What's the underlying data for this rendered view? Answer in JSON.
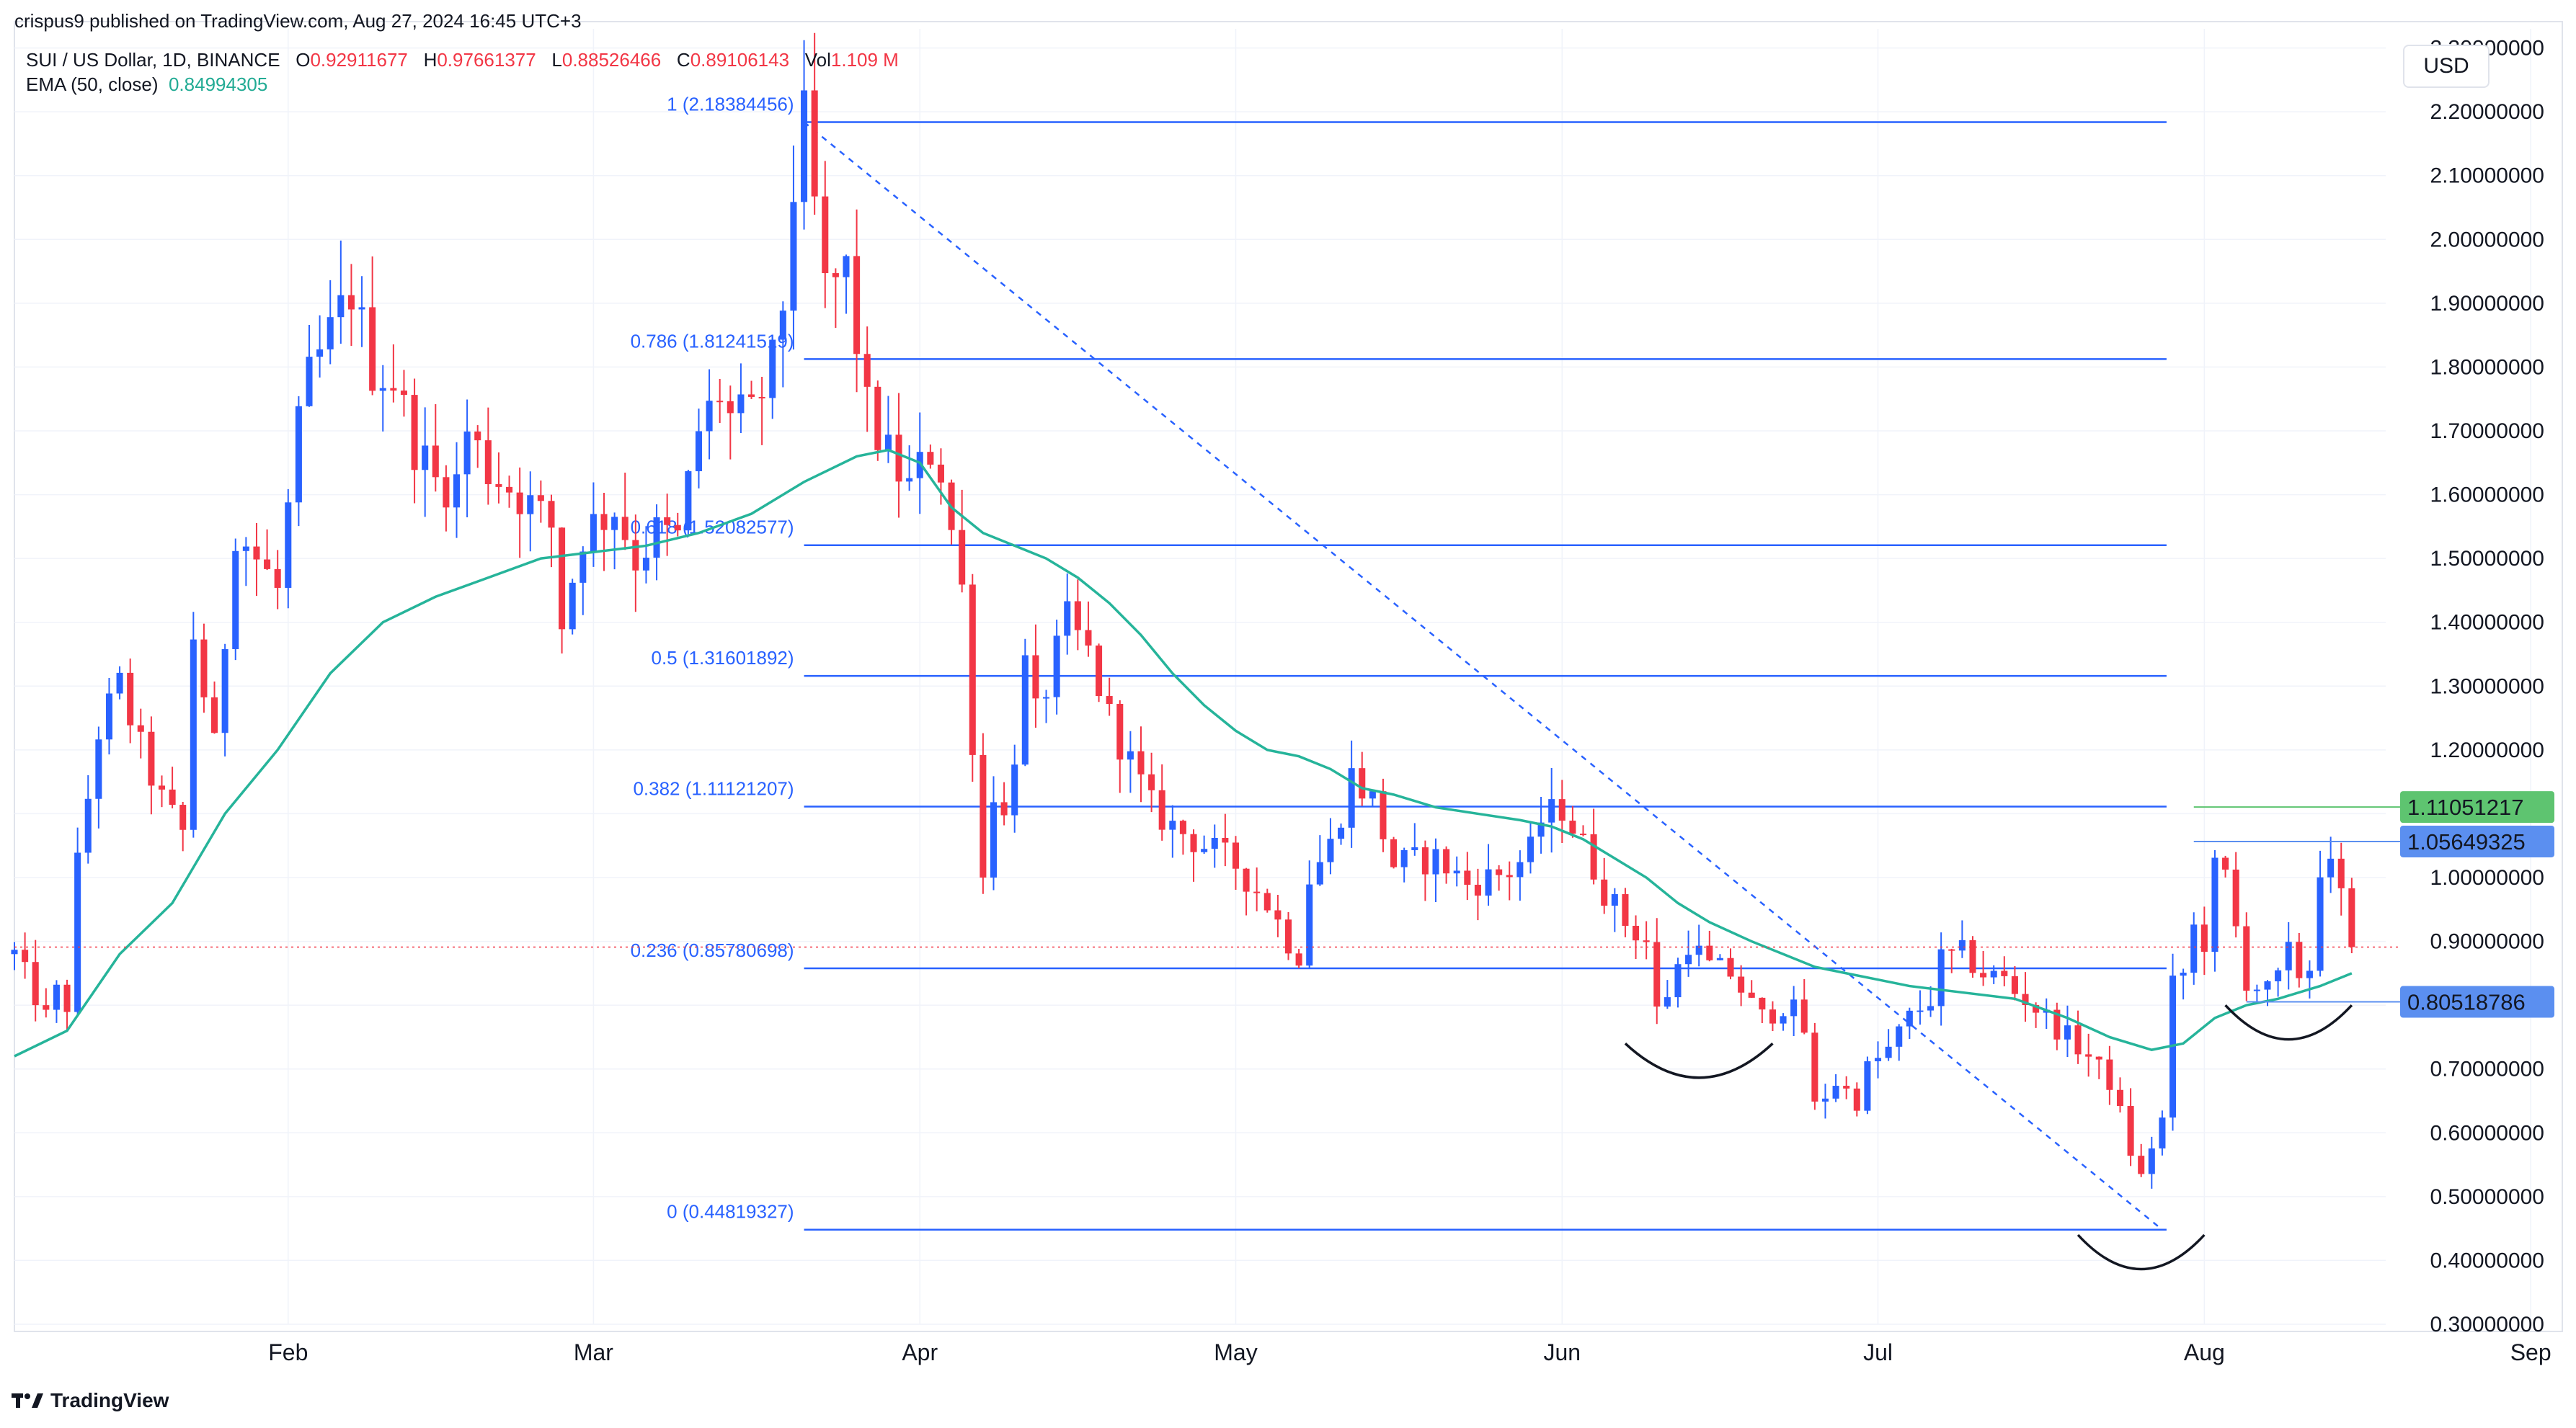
{
  "header": {
    "publisher": "crispus9 published on TradingView.com, Aug 27, 2024 16:45 UTC+3",
    "symbol": "SUI / US Dollar, 1D, BINANCE",
    "o_label": "O",
    "o_value": "0.92911677",
    "h_label": "H",
    "h_value": "0.97661377",
    "l_label": "L",
    "l_value": "0.88526466",
    "c_label": "C",
    "c_value": "0.89106143",
    "vol_label": "Vol",
    "vol_value": "1.109 M",
    "ema_label": "EMA (50, close)",
    "ema_value": "0.84994305"
  },
  "currency": "USD",
  "brand": "TradingView",
  "colors": {
    "up": "#2962ff",
    "down": "#f23645",
    "ema": "#26b49a",
    "fib": "#2962ff",
    "grid": "#f0f3fa",
    "green_tag": "#5ec470",
    "blue_tag": "#5b8ff0"
  },
  "chart_data": {
    "type": "candlestick",
    "title": "SUI / US Dollar, 1D, BINANCE",
    "ylim": [
      0.3,
      2.33
    ],
    "y_ticks": [
      "2.30000000",
      "2.20000000",
      "2.10000000",
      "2.00000000",
      "1.90000000",
      "1.80000000",
      "1.70000000",
      "1.60000000",
      "1.50000000",
      "1.40000000",
      "1.30000000",
      "1.20000000",
      "1.10000000",
      "1.00000000",
      "0.90000000",
      "0.80000000",
      "0.70000000",
      "0.60000000",
      "0.50000000",
      "0.40000000",
      "0.30000000"
    ],
    "x_labels": [
      {
        "label": "Feb",
        "day": 31
      },
      {
        "label": "Mar",
        "day": 60
      },
      {
        "label": "Apr",
        "day": 91
      },
      {
        "label": "May",
        "day": 121
      },
      {
        "label": "Jun",
        "day": 152
      },
      {
        "label": "Jul",
        "day": 182
      },
      {
        "label": "Aug",
        "day": 213
      },
      {
        "label": "Sep",
        "day": 244
      }
    ],
    "x_range_days": [
      5,
      247
    ],
    "price_path": [
      [
        5,
        0.88
      ],
      [
        8,
        0.78
      ],
      [
        9,
        0.82
      ],
      [
        10,
        0.8
      ],
      [
        11,
        1.02
      ],
      [
        13,
        1.23
      ],
      [
        15,
        1.3
      ],
      [
        17,
        1.2
      ],
      [
        19,
        1.12
      ],
      [
        21,
        1.07
      ],
      [
        22,
        1.38
      ],
      [
        24,
        1.2
      ],
      [
        26,
        1.55
      ],
      [
        28,
        1.5
      ],
      [
        30,
        1.45
      ],
      [
        32,
        1.7
      ],
      [
        33,
        1.78
      ],
      [
        35,
        1.85
      ],
      [
        37,
        1.92
      ],
      [
        39,
        1.8
      ],
      [
        41,
        1.78
      ],
      [
        43,
        1.68
      ],
      [
        45,
        1.62
      ],
      [
        47,
        1.62
      ],
      [
        48,
        1.7
      ],
      [
        50,
        1.64
      ],
      [
        53,
        1.6
      ],
      [
        56,
        1.55
      ],
      [
        57,
        1.4
      ],
      [
        59,
        1.54
      ],
      [
        62,
        1.58
      ],
      [
        64,
        1.5
      ],
      [
        66,
        1.54
      ],
      [
        68,
        1.53
      ],
      [
        70,
        1.7
      ],
      [
        72,
        1.76
      ],
      [
        73,
        1.72
      ],
      [
        75,
        1.72
      ],
      [
        77,
        1.8
      ],
      [
        78,
        1.9
      ],
      [
        79,
        2.08
      ],
      [
        80,
        2.18
      ],
      [
        81,
        2.05
      ],
      [
        82,
        1.92
      ],
      [
        84,
        1.95
      ],
      [
        86,
        1.73
      ],
      [
        88,
        1.66
      ],
      [
        90,
        1.61
      ],
      [
        92,
        1.67
      ],
      [
        93,
        1.64
      ],
      [
        95,
        1.45
      ],
      [
        96,
        1.22
      ],
      [
        97,
        1.0
      ],
      [
        98,
        1.14
      ],
      [
        99,
        1.09
      ],
      [
        100,
        1.2
      ],
      [
        101,
        1.33
      ],
      [
        102,
        1.25
      ],
      [
        104,
        1.35
      ],
      [
        105,
        1.4
      ],
      [
        107,
        1.35
      ],
      [
        109,
        1.25
      ],
      [
        111,
        1.18
      ],
      [
        113,
        1.11
      ],
      [
        115,
        1.08
      ],
      [
        118,
        1.05
      ],
      [
        121,
        1.02
      ],
      [
        124,
        0.96
      ],
      [
        126,
        0.9
      ],
      [
        127,
        0.88
      ],
      [
        128,
        1.0
      ],
      [
        130,
        1.05
      ],
      [
        132,
        1.16
      ],
      [
        134,
        1.12
      ],
      [
        136,
        1.02
      ],
      [
        140,
        1.03
      ],
      [
        143,
        0.99
      ],
      [
        147,
        1.01
      ],
      [
        149,
        1.04
      ],
      [
        150,
        1.09
      ],
      [
        152,
        1.11
      ],
      [
        154,
        1.05
      ],
      [
        156,
        0.98
      ],
      [
        158,
        0.93
      ],
      [
        160,
        0.9
      ],
      [
        161,
        0.79
      ],
      [
        162,
        0.82
      ],
      [
        164,
        0.9
      ],
      [
        166,
        0.86
      ],
      [
        168,
        0.85
      ],
      [
        170,
        0.8
      ],
      [
        171,
        0.78
      ],
      [
        173,
        0.8
      ],
      [
        174,
        0.79
      ],
      [
        175,
        0.76
      ],
      [
        176,
        0.64
      ],
      [
        178,
        0.68
      ],
      [
        180,
        0.65
      ],
      [
        181,
        0.7
      ],
      [
        183,
        0.73
      ],
      [
        185,
        0.78
      ],
      [
        187,
        0.81
      ],
      [
        188,
        0.87
      ],
      [
        190,
        0.88
      ],
      [
        192,
        0.85
      ],
      [
        194,
        0.84
      ],
      [
        195,
        0.82
      ],
      [
        196,
        0.81
      ],
      [
        198,
        0.78
      ],
      [
        200,
        0.75
      ],
      [
        202,
        0.72
      ],
      [
        204,
        0.68
      ],
      [
        205,
        0.63
      ],
      [
        206,
        0.57
      ],
      [
        207,
        0.53
      ],
      [
        208,
        0.58
      ],
      [
        209,
        0.62
      ],
      [
        210,
        0.83
      ],
      [
        211,
        0.85
      ],
      [
        212,
        0.92
      ],
      [
        213,
        0.9
      ],
      [
        214,
        1.01
      ],
      [
        215,
        1.0
      ],
      [
        216,
        0.92
      ],
      [
        217,
        0.84
      ],
      [
        219,
        0.82
      ],
      [
        220,
        0.84
      ],
      [
        221,
        0.88
      ],
      [
        222,
        0.85
      ],
      [
        223,
        0.86
      ],
      [
        224,
        1.02
      ],
      [
        225,
        1.01
      ],
      [
        226,
        0.97
      ],
      [
        227,
        0.89
      ]
    ],
    "ema": [
      [
        5,
        0.72
      ],
      [
        10,
        0.76
      ],
      [
        15,
        0.88
      ],
      [
        20,
        0.96
      ],
      [
        25,
        1.1
      ],
      [
        30,
        1.2
      ],
      [
        35,
        1.32
      ],
      [
        40,
        1.4
      ],
      [
        45,
        1.44
      ],
      [
        50,
        1.47
      ],
      [
        55,
        1.5
      ],
      [
        60,
        1.51
      ],
      [
        65,
        1.52
      ],
      [
        70,
        1.54
      ],
      [
        75,
        1.57
      ],
      [
        80,
        1.62
      ],
      [
        85,
        1.66
      ],
      [
        88,
        1.67
      ],
      [
        91,
        1.65
      ],
      [
        94,
        1.58
      ],
      [
        97,
        1.54
      ],
      [
        100,
        1.52
      ],
      [
        103,
        1.5
      ],
      [
        106,
        1.47
      ],
      [
        109,
        1.43
      ],
      [
        112,
        1.38
      ],
      [
        115,
        1.32
      ],
      [
        118,
        1.27
      ],
      [
        121,
        1.23
      ],
      [
        124,
        1.2
      ],
      [
        127,
        1.19
      ],
      [
        130,
        1.17
      ],
      [
        133,
        1.14
      ],
      [
        136,
        1.13
      ],
      [
        140,
        1.11
      ],
      [
        144,
        1.1
      ],
      [
        148,
        1.09
      ],
      [
        151,
        1.08
      ],
      [
        154,
        1.06
      ],
      [
        157,
        1.03
      ],
      [
        160,
        1.0
      ],
      [
        163,
        0.96
      ],
      [
        166,
        0.93
      ],
      [
        170,
        0.9
      ],
      [
        173,
        0.88
      ],
      [
        176,
        0.86
      ],
      [
        179,
        0.85
      ],
      [
        182,
        0.84
      ],
      [
        185,
        0.83
      ],
      [
        190,
        0.82
      ],
      [
        195,
        0.81
      ],
      [
        200,
        0.78
      ],
      [
        204,
        0.75
      ],
      [
        208,
        0.73
      ],
      [
        211,
        0.74
      ],
      [
        214,
        0.78
      ],
      [
        217,
        0.8
      ],
      [
        220,
        0.81
      ],
      [
        224,
        0.83
      ],
      [
        227,
        0.85
      ]
    ],
    "fib_levels": [
      {
        "label": "1 (2.18384456)",
        "value": 2.18384456
      },
      {
        "label": "0.786 (1.81241519)",
        "value": 1.81241519
      },
      {
        "label": "0.618 (1.52082577)",
        "value": 1.52082577
      },
      {
        "label": "0.5 (1.31601892)",
        "value": 1.31601892
      },
      {
        "label": "0.382 (1.11121207)",
        "value": 1.11121207
      },
      {
        "label": "0.236 (0.85780698)",
        "value": 0.85780698
      },
      {
        "label": "0 (0.44819327)",
        "value": 0.44819327
      }
    ],
    "fib_day_range": [
      80,
      209
    ],
    "trend_line": [
      [
        80,
        2.18384456
      ],
      [
        209,
        0.44819327
      ]
    ],
    "price_tags": [
      {
        "label": "1.11051217",
        "value": 1.11051217,
        "color": "#5ec470",
        "from_day": 212
      },
      {
        "label": "1.05649325",
        "value": 1.05649325,
        "color": "#5b8ff0",
        "from_day": 212
      },
      {
        "label": "0.80518786",
        "value": 0.80518786,
        "color": "#5b8ff0",
        "from_day": 217
      }
    ],
    "current_price": 0.89106143,
    "arcs": [
      {
        "center_day": 165,
        "value": 0.74,
        "width_days": 14
      },
      {
        "center_day": 207,
        "value": 0.44,
        "width_days": 12
      },
      {
        "center_day": 221,
        "value": 0.8,
        "width_days": 12
      }
    ]
  }
}
